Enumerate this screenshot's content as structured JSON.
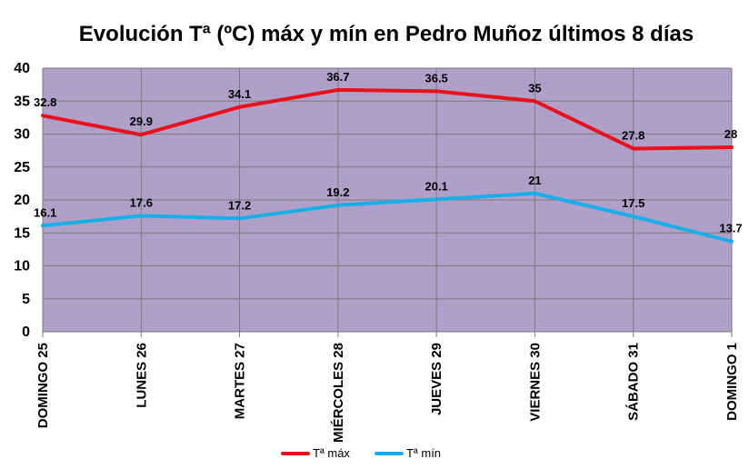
{
  "chart_data": {
    "type": "line",
    "title": "Evolución Tª (ºC) máx y mín en Pedro Muñoz últimos 8 días",
    "xlabel": "",
    "ylabel": "",
    "categories": [
      "DOMINGO 25",
      "LUNES 26",
      "MARTES 27",
      "MIÉRCOLES 28",
      "JUEVES 29",
      "VIERNES 30",
      "SÁBADO 31",
      "DOMINGO 1"
    ],
    "ylim": [
      0,
      40
    ],
    "yticks": [
      0,
      5,
      10,
      15,
      20,
      25,
      30,
      35,
      40
    ],
    "grid": true,
    "legend_position": "bottom",
    "plot_background": "#b09fc8",
    "series": [
      {
        "name": "Tª máx",
        "color": "#e8101a",
        "values": [
          32.8,
          29.9,
          34.1,
          36.7,
          36.5,
          35,
          27.8,
          28
        ]
      },
      {
        "name": "Tª mín",
        "color": "#19aee8",
        "values": [
          16.1,
          17.6,
          17.2,
          19.2,
          20.1,
          21,
          17.5,
          13.7
        ]
      }
    ]
  }
}
